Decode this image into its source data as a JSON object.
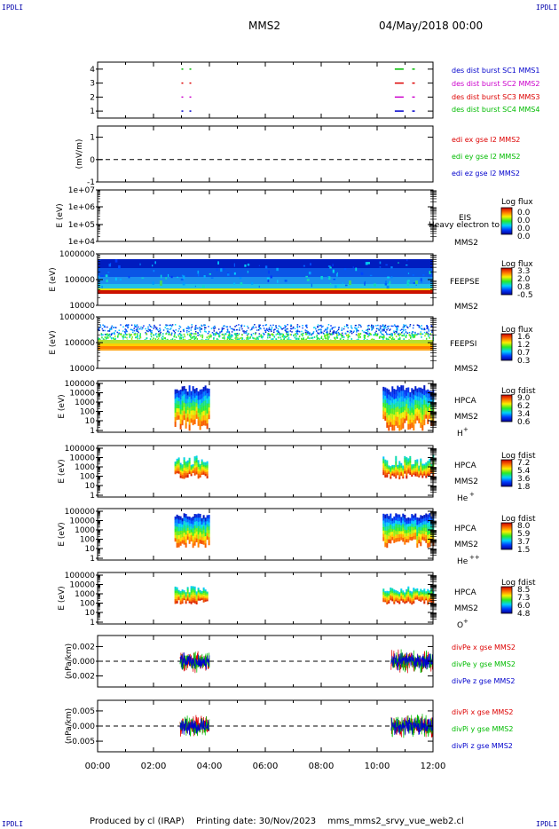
{
  "header": {
    "corner_label": "IPDLI",
    "title": "MMS2",
    "datetime": "04/May/2018 00:00"
  },
  "footer": {
    "produced_by": "Produced by cl (IRAP)",
    "printing_date": "Printing date: 30/Nov/2023",
    "file": "mms_mms2_srvy_vue_web2.cl"
  },
  "chart_data": {
    "type": "multi-panel time series (line + spectrogram)",
    "x": {
      "unit": "UT time",
      "range": [
        "00:00",
        "12:00"
      ],
      "tick_labels": [
        "00:00",
        "02:00",
        "04:00",
        "06:00",
        "08:00",
        "10:00",
        "12:00"
      ]
    },
    "panels": [
      {
        "id": "burst",
        "ylim": [
          0.5,
          4.5
        ],
        "tick_labels": [
          "1",
          "2",
          "3",
          "4"
        ],
        "legend": [
          {
            "label": "des dist burst SC1 MMS1",
            "color": "#0000cc"
          },
          {
            "label": "des dist burst SC2 MMS2",
            "color": "#cc00cc"
          },
          {
            "label": "des dist burst SC3 MMS3",
            "color": "#dd0000"
          },
          {
            "label": "des dist burst SC4 MMS4",
            "color": "#00bb00"
          }
        ],
        "intervals_hours": [
          [
            3.0,
            3.35
          ],
          [
            10.95,
            11.35
          ]
        ]
      },
      {
        "id": "edi",
        "ylabel": "(mV/m)",
        "ylim": [
          -1,
          1.5
        ],
        "tick_labels": [
          "1",
          "0",
          "-1"
        ],
        "legend": [
          {
            "label": "edi ex gse l2 MMS2",
            "color": "#dd0000"
          },
          {
            "label": "edi ey gse l2 MMS2",
            "color": "#00bb00"
          },
          {
            "label": "edi ez gse l2 MMS2",
            "color": "#0000cc"
          }
        ]
      },
      {
        "id": "eis",
        "ylabel": "E (eV)",
        "tick_labels": [
          "1e+07",
          "1e+06",
          "1e+05",
          "1e+04"
        ],
        "instrument": "EIS",
        "overlap_text": "Heavy electron to",
        "sc": "MMS2",
        "cbar_title": "Log flux",
        "cbar_ticks": [
          "0.0",
          "0.0",
          "0.0",
          "0.0"
        ]
      },
      {
        "id": "feepse",
        "ylabel": "E (eV)",
        "tick_labels": [
          "1000000",
          "100000",
          "10000"
        ],
        "instrument": "FEEPSE",
        "sc": "MMS2",
        "cbar_title": "Log flux",
        "cbar_ticks": [
          "3.3",
          "2.0",
          "0.8",
          "-0.5"
        ]
      },
      {
        "id": "feepsi",
        "ylabel": "E (eV)",
        "tick_labels": [
          "1000000",
          "100000",
          "10000"
        ],
        "instrument": "FEEPSI",
        "sc": "MMS2",
        "cbar_title": "Log flux",
        "cbar_ticks": [
          "1.6",
          "1.2",
          "0.7",
          "0.3"
        ]
      },
      {
        "id": "hpca_h",
        "ylabel": "E (eV)",
        "tick_labels": [
          "100000",
          "10000",
          "1000",
          "100",
          "10",
          "1"
        ],
        "instrument": "HPCA",
        "sc": "MMS2",
        "ion": "H",
        "ion_sup": "+",
        "cbar_title": "Log fdist",
        "cbar_ticks": [
          "9.0",
          "6.2",
          "3.4",
          "0.6"
        ],
        "intervals_hours": [
          [
            2.75,
            4.0
          ],
          [
            10.2,
            12.0
          ]
        ]
      },
      {
        "id": "hpca_he",
        "ylabel": "E (eV)",
        "tick_labels": [
          "100000",
          "10000",
          "1000",
          "100",
          "10",
          "1"
        ],
        "instrument": "HPCA",
        "sc": "MMS2",
        "ion": "He",
        "ion_sup": "+",
        "cbar_title": "Log fdist",
        "cbar_ticks": [
          "7.2",
          "5.4",
          "3.6",
          "1.8"
        ],
        "intervals_hours": [
          [
            2.75,
            3.95
          ],
          [
            10.2,
            12.0
          ]
        ]
      },
      {
        "id": "hpca_hepp",
        "ylabel": "E (eV)",
        "tick_labels": [
          "100000",
          "10000",
          "1000",
          "100",
          "10",
          "1"
        ],
        "instrument": "HPCA",
        "sc": "MMS2",
        "ion": "He",
        "ion_sup": "++",
        "cbar_title": "Log fdist",
        "cbar_ticks": [
          "8.0",
          "5.9",
          "3.7",
          "1.5"
        ],
        "intervals_hours": [
          [
            2.75,
            4.0
          ],
          [
            10.2,
            12.0
          ]
        ]
      },
      {
        "id": "hpca_o",
        "ylabel": "E (eV)",
        "tick_labels": [
          "100000",
          "10000",
          "1000",
          "100",
          "10",
          "1"
        ],
        "instrument": "HPCA",
        "sc": "MMS2",
        "ion": "O",
        "ion_sup": "+",
        "cbar_title": "Log fdist",
        "cbar_ticks": [
          "8.5",
          "7.3",
          "6.0",
          "4.8"
        ],
        "intervals_hours": [
          [
            2.75,
            3.95
          ],
          [
            10.2,
            12.0
          ]
        ]
      },
      {
        "id": "divpe",
        "ylabel": "(nPa/km)",
        "ylim": [
          -0.0035,
          0.0035
        ],
        "tick_labels": [
          "0.002",
          "0.000",
          "-0.002"
        ],
        "legend": [
          {
            "label": "divPe x gse MMS2",
            "color": "#dd0000"
          },
          {
            "label": "divPe y gse MMS2",
            "color": "#00bb00"
          },
          {
            "label": "divPe z gse MMS2",
            "color": "#0000cc"
          }
        ],
        "intervals_hours": [
          [
            2.95,
            4.0
          ],
          [
            10.5,
            12.0
          ]
        ]
      },
      {
        "id": "divpi",
        "ylabel": "(nPa/km)",
        "ylim": [
          -0.0085,
          0.0085
        ],
        "tick_labels": [
          "0.005",
          "0.000",
          "-0.005"
        ],
        "legend": [
          {
            "label": "divPi x gse MMS2",
            "color": "#dd0000"
          },
          {
            "label": "divPi y gse MMS2",
            "color": "#00bb00"
          },
          {
            "label": "divPi z gse MMS2",
            "color": "#0000cc"
          }
        ],
        "intervals_hours": [
          [
            2.95,
            4.0
          ],
          [
            10.5,
            12.0
          ]
        ]
      }
    ]
  }
}
